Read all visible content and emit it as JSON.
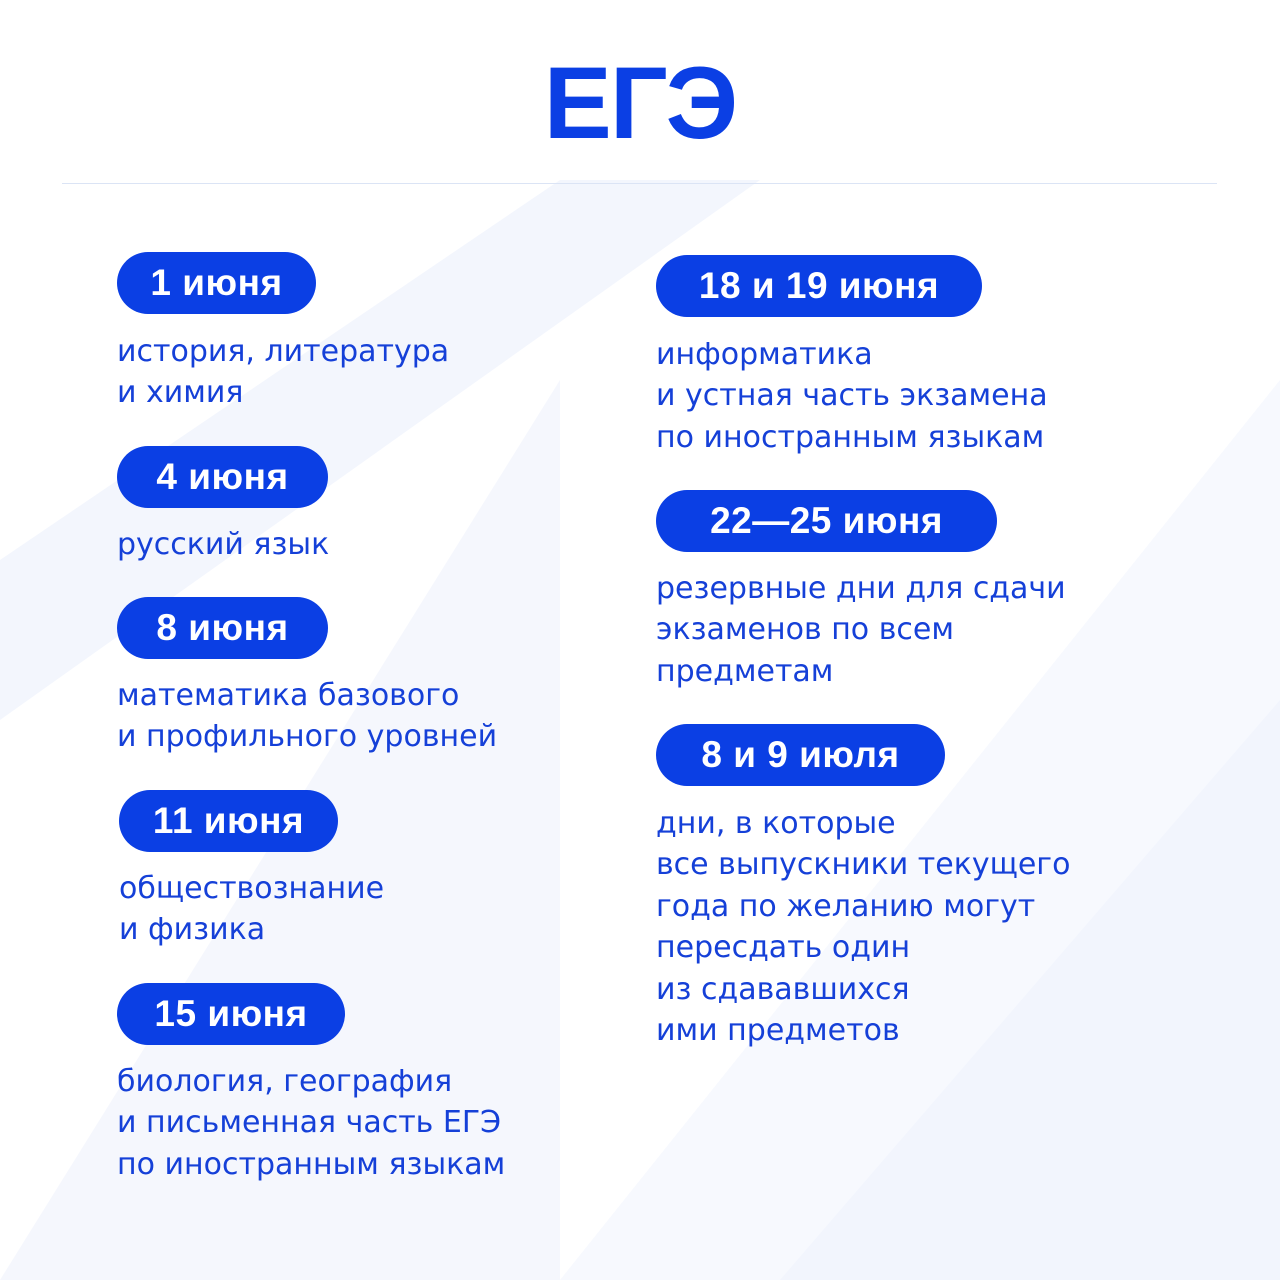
{
  "logo": {
    "text": "ЕГЭ"
  },
  "colors": {
    "accent": "#0b3fe4",
    "text": "#1540d8",
    "background": "#ffffff"
  },
  "left_column": [
    {
      "date": "1 июня",
      "lines": [
        "история, литература",
        "и химия"
      ]
    },
    {
      "date": "4 июня",
      "lines": [
        "русский язык"
      ]
    },
    {
      "date": "8 июня",
      "lines": [
        "математика базового",
        "и профильного уровней"
      ]
    },
    {
      "date": "11 июня",
      "lines": [
        "обществознание",
        "и физика"
      ]
    },
    {
      "date": "15 июня",
      "lines": [
        "биология, география",
        "и письменная часть ЕГЭ",
        "по иностранным языкам"
      ]
    }
  ],
  "right_column": [
    {
      "date": "18 и 19 июня",
      "lines": [
        "информатика",
        "и устная часть экзамена",
        "по иностранным языкам"
      ]
    },
    {
      "date": "22—25 июня",
      "lines": [
        "резервные дни для сдачи",
        "экзаменов по всем",
        "предметам"
      ]
    },
    {
      "date": "8 и 9 июля",
      "lines": [
        "дни, в которые",
        "все выпускники текущего",
        "года по желанию могут",
        "пересдать один",
        "из сдававшихся",
        "ими предметов"
      ]
    }
  ]
}
